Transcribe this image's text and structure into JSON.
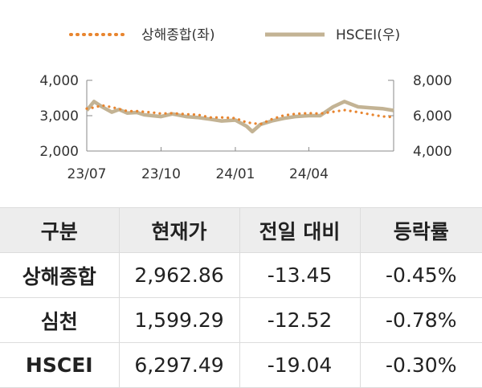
{
  "colors": {
    "orange": "#e8852f",
    "tan": "#c3b394",
    "axis": "#8a8a8a"
  },
  "chart_data": {
    "type": "line",
    "legend_position": "top",
    "grid": false,
    "x_ticks": [
      "23/07",
      "23/10",
      "24/01",
      "24/04"
    ],
    "y_left": {
      "ticks": [
        "2,000",
        "3,000",
        "4,000"
      ],
      "range": [
        2000,
        4000
      ]
    },
    "y_right": {
      "ticks": [
        "4,000",
        "6,000",
        "8,000"
      ],
      "range": [
        4000,
        8000
      ]
    },
    "series": [
      {
        "name": "상해종합(좌)",
        "axis": "left",
        "style": "dotted",
        "color": "#e8852f",
        "x": [
          "2023-07-01",
          "2023-07-10",
          "2023-07-20",
          "2023-08-01",
          "2023-08-10",
          "2023-08-20",
          "2023-09-01",
          "2023-09-10",
          "2023-09-20",
          "2023-10-01",
          "2023-10-15",
          "2023-11-01",
          "2023-11-15",
          "2023-12-01",
          "2023-12-15",
          "2024-01-01",
          "2024-01-15",
          "2024-02-01",
          "2024-02-15",
          "2024-03-01",
          "2024-03-15",
          "2024-04-01",
          "2024-04-15",
          "2024-05-01",
          "2024-05-15",
          "2024-06-01",
          "2024-06-15",
          "2024-07-01",
          "2024-07-15"
        ],
        "values": [
          3200,
          3230,
          3290,
          3240,
          3190,
          3130,
          3130,
          3110,
          3090,
          3060,
          3070,
          3040,
          3030,
          2950,
          2950,
          2930,
          2810,
          2760,
          2900,
          3010,
          3050,
          3070,
          3060,
          3110,
          3160,
          3100,
          3040,
          2980,
          2960
        ]
      },
      {
        "name": "HSCEI(우)",
        "axis": "right",
        "style": "solid",
        "color": "#c3b394",
        "x": [
          "2023-07-01",
          "2023-07-10",
          "2023-07-20",
          "2023-08-01",
          "2023-08-10",
          "2023-08-20",
          "2023-09-01",
          "2023-09-10",
          "2023-09-20",
          "2023-10-01",
          "2023-10-15",
          "2023-11-01",
          "2023-11-15",
          "2023-12-01",
          "2023-12-15",
          "2024-01-01",
          "2024-01-15",
          "2024-01-22",
          "2024-02-01",
          "2024-02-15",
          "2024-03-01",
          "2024-03-15",
          "2024-04-01",
          "2024-04-15",
          "2024-05-01",
          "2024-05-15",
          "2024-06-01",
          "2024-06-15",
          "2024-07-01",
          "2024-07-15"
        ],
        "values": [
          6300,
          6800,
          6500,
          6200,
          6350,
          6150,
          6180,
          6050,
          6000,
          5950,
          6100,
          5950,
          5900,
          5800,
          5700,
          5750,
          5400,
          5100,
          5500,
          5700,
          5850,
          5950,
          6000,
          6000,
          6500,
          6800,
          6500,
          6450,
          6400,
          6297
        ]
      }
    ]
  },
  "table": {
    "headers": [
      "구분",
      "현재가",
      "전일 대비",
      "등락률"
    ],
    "rows": [
      [
        "상해종합",
        "2,962.86",
        "-13.45",
        "-0.45%"
      ],
      [
        "심천",
        "1,599.29",
        "-12.52",
        "-0.78%"
      ],
      [
        "HSCEI",
        "6,297.49",
        "-19.04",
        "-0.30%"
      ]
    ]
  }
}
